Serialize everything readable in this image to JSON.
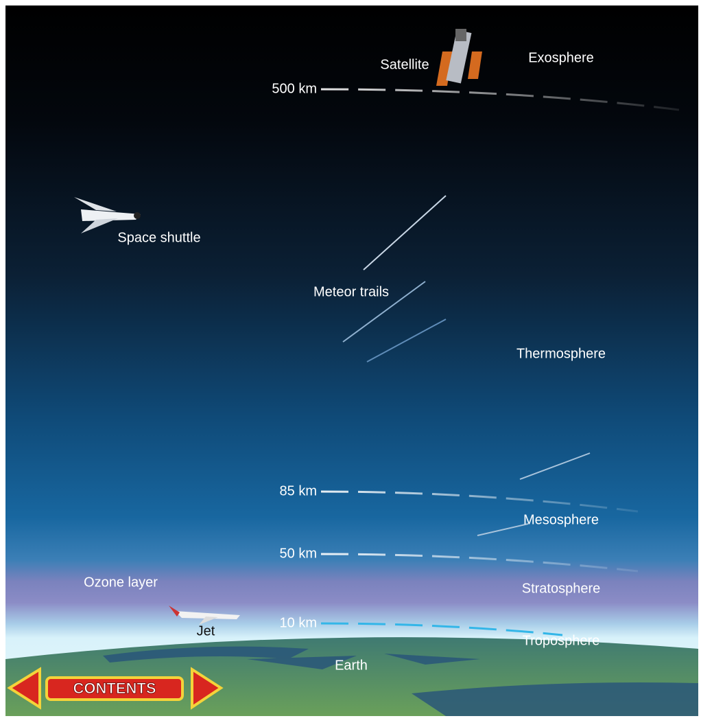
{
  "altitudes": [
    "500 km",
    "85 km",
    "50 km",
    "10 km"
  ],
  "layers": [
    "Exosphere",
    "Thermosphere",
    "Mesosphere",
    "Stratosphere",
    "Troposphere"
  ],
  "objects": {
    "satellite": "Satellite",
    "shuttle": "Space shuttle",
    "meteors": "Meteor trails",
    "ozone": "Ozone layer",
    "jet": "Jet",
    "earth": "Earth"
  },
  "navigation": {
    "contents": "CONTENTS"
  }
}
